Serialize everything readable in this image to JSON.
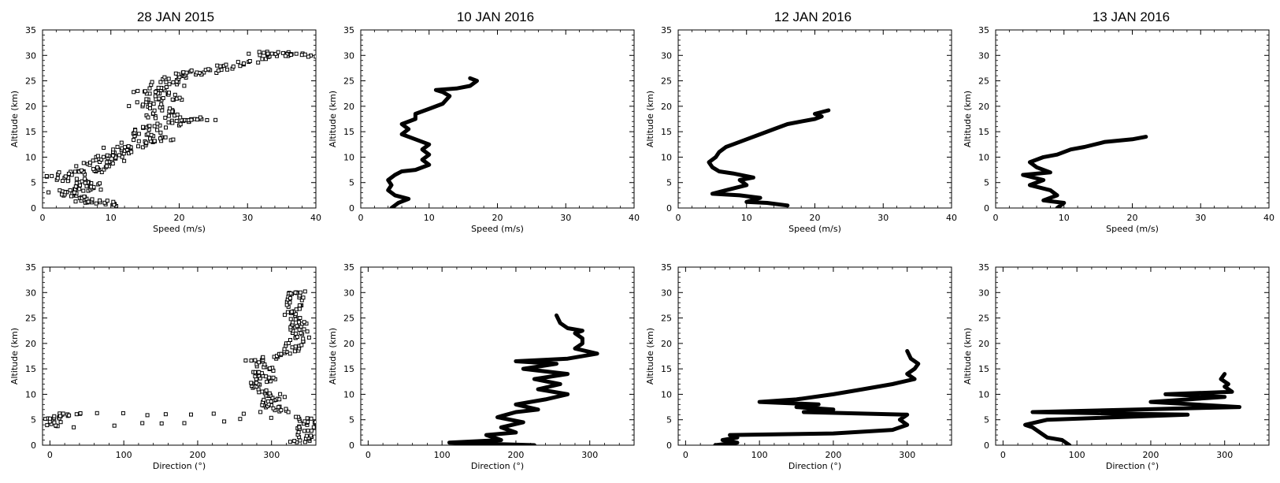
{
  "columns": [
    {
      "title": "28 JAN 2015"
    },
    {
      "title": "10 JAN 2016"
    },
    {
      "title": "12 JAN 2016"
    },
    {
      "title": "13 JAN 2016"
    }
  ],
  "chart_data": [
    {
      "type": "scatter",
      "title": "28 JAN 2015",
      "xlabel": "Speed (m/s)",
      "ylabel": "Altitude (km)",
      "xlim": [
        0,
        40
      ],
      "ylim": [
        0,
        35
      ],
      "xticks": [
        0,
        10,
        20,
        30,
        40
      ],
      "yticks": [
        0,
        5,
        10,
        15,
        20,
        25,
        30,
        35
      ],
      "jitter": 2.5,
      "points": [
        [
          10,
          0.5
        ],
        [
          8.5,
          1
        ],
        [
          6,
          1.5
        ],
        [
          5,
          2.5
        ],
        [
          3,
          3
        ],
        [
          5.5,
          3.5
        ],
        [
          8,
          4
        ],
        [
          6,
          5
        ],
        [
          4,
          5.5
        ],
        [
          2.5,
          6.5
        ],
        [
          6,
          7
        ],
        [
          8,
          7.5
        ],
        [
          7,
          8.5
        ],
        [
          10,
          9
        ],
        [
          9,
          10
        ],
        [
          12,
          10.5
        ],
        [
          11,
          11.5
        ],
        [
          13,
          12
        ],
        [
          14,
          13
        ],
        [
          17,
          13.5
        ],
        [
          15,
          14.5
        ],
        [
          16,
          15.5
        ],
        [
          18,
          16.5
        ],
        [
          21,
          17.2
        ],
        [
          23,
          17.3
        ],
        [
          17,
          18
        ],
        [
          18,
          19
        ],
        [
          15,
          20
        ],
        [
          16,
          21
        ],
        [
          19,
          21.5
        ],
        [
          17,
          22.5
        ],
        [
          15,
          23
        ],
        [
          19,
          24
        ],
        [
          17,
          25
        ],
        [
          20,
          26
        ],
        [
          22,
          26.5
        ],
        [
          24,
          27
        ],
        [
          27,
          28
        ],
        [
          30,
          29
        ],
        [
          33,
          30.5
        ],
        [
          36,
          30.5
        ],
        [
          38,
          30
        ]
      ]
    },
    {
      "type": "line",
      "title": "10 JAN 2016",
      "xlabel": "Speed (m/s)",
      "ylabel": "Altitude (km)",
      "xlim": [
        0,
        40
      ],
      "ylim": [
        0,
        35
      ],
      "xticks": [
        0,
        10,
        20,
        30,
        40
      ],
      "yticks": [
        0,
        5,
        10,
        15,
        20,
        25,
        30,
        35
      ],
      "points": [
        [
          4.5,
          0
        ],
        [
          5.5,
          1
        ],
        [
          7,
          1.8
        ],
        [
          5,
          2.5
        ],
        [
          4,
          3.5
        ],
        [
          4.5,
          4.5
        ],
        [
          4,
          5.5
        ],
        [
          5,
          6.5
        ],
        [
          6,
          7.2
        ],
        [
          8,
          7.5
        ],
        [
          10,
          8.5
        ],
        [
          9,
          9.5
        ],
        [
          10,
          10.5
        ],
        [
          9,
          11.5
        ],
        [
          10,
          12.5
        ],
        [
          8,
          13.5
        ],
        [
          6,
          14.5
        ],
        [
          7,
          15.5
        ],
        [
          6,
          16.5
        ],
        [
          8,
          17.5
        ],
        [
          8,
          18.5
        ],
        [
          10,
          19.5
        ],
        [
          12,
          20.5
        ],
        [
          13,
          22
        ],
        [
          12,
          22.8
        ],
        [
          11,
          23.2
        ],
        [
          14,
          23.5
        ],
        [
          16,
          24
        ],
        [
          17,
          25
        ],
        [
          16,
          25.5
        ]
      ]
    },
    {
      "type": "line",
      "title": "12 JAN 2016",
      "xlabel": "Speed (m/s)",
      "ylabel": "Altitude (km)",
      "xlim": [
        0,
        40
      ],
      "ylim": [
        0,
        35
      ],
      "xticks": [
        0,
        10,
        20,
        30,
        40
      ],
      "yticks": [
        0,
        5,
        10,
        15,
        20,
        25,
        30,
        35
      ],
      "points": [
        [
          16,
          0.5
        ],
        [
          13,
          1
        ],
        [
          10,
          1.2
        ],
        [
          12,
          2
        ],
        [
          9,
          2.5
        ],
        [
          5,
          2.8
        ],
        [
          7,
          3.5
        ],
        [
          10,
          4.5
        ],
        [
          9,
          5.5
        ],
        [
          11,
          6
        ],
        [
          8,
          6.8
        ],
        [
          6,
          7.2
        ],
        [
          5,
          8
        ],
        [
          4.5,
          9
        ],
        [
          5.5,
          10
        ],
        [
          6,
          11
        ],
        [
          7,
          12
        ],
        [
          8,
          12.5
        ],
        [
          10,
          13.5
        ],
        [
          12,
          14.5
        ],
        [
          14,
          15.5
        ],
        [
          16,
          16.5
        ],
        [
          18,
          17
        ],
        [
          20,
          17.5
        ],
        [
          21,
          18
        ],
        [
          20,
          18.5
        ],
        [
          22,
          19.2
        ]
      ]
    },
    {
      "type": "line",
      "title": "13 JAN 2016",
      "xlabel": "Speed (m/s)",
      "ylabel": "Altitude (km)",
      "xlim": [
        0,
        40
      ],
      "ylim": [
        0,
        35
      ],
      "xticks": [
        0,
        10,
        20,
        30,
        40
      ],
      "yticks": [
        0,
        5,
        10,
        15,
        20,
        25,
        30,
        35
      ],
      "points": [
        [
          9,
          0
        ],
        [
          10,
          1
        ],
        [
          7,
          1.5
        ],
        [
          9,
          2.5
        ],
        [
          8,
          3.5
        ],
        [
          5,
          4.5
        ],
        [
          7,
          5.5
        ],
        [
          4,
          6.5
        ],
        [
          8,
          7
        ],
        [
          6,
          8
        ],
        [
          5,
          9
        ],
        [
          7,
          10
        ],
        [
          9,
          10.5
        ],
        [
          11,
          11.5
        ],
        [
          13,
          12
        ],
        [
          16,
          13
        ],
        [
          20,
          13.5
        ],
        [
          22,
          14
        ]
      ]
    },
    {
      "type": "scatter",
      "title": "28 JAN 2015",
      "xlabel": "Direction (°)",
      "ylabel": "Altitude (km)",
      "xlim": [
        -10,
        360
      ],
      "ylim": [
        0,
        35
      ],
      "xticks": [
        0,
        100,
        200,
        300
      ],
      "yticks": [
        0,
        5,
        10,
        15,
        20,
        25,
        30,
        35
      ],
      "jitter": 12,
      "points": [
        [
          335,
          0.5
        ],
        [
          350,
          1.5
        ],
        [
          345,
          3
        ],
        [
          350,
          4.5
        ],
        [
          340,
          5.5
        ],
        [
          2,
          3.5
        ],
        [
          5,
          5
        ],
        [
          20,
          6
        ],
        [
          30,
          6
        ],
        [
          315,
          6.5
        ],
        [
          300,
          7.5
        ],
        [
          295,
          8.5
        ],
        [
          310,
          9.5
        ],
        [
          285,
          10.5
        ],
        [
          275,
          12
        ],
        [
          295,
          13
        ],
        [
          285,
          14
        ],
        [
          300,
          15
        ],
        [
          270,
          16.5
        ],
        [
          305,
          17.5
        ],
        [
          325,
          18.5
        ],
        [
          330,
          20
        ],
        [
          345,
          21.5
        ],
        [
          330,
          23
        ],
        [
          340,
          24
        ],
        [
          325,
          25.5
        ],
        [
          330,
          27
        ],
        [
          333,
          28.5
        ],
        [
          335,
          30
        ]
      ]
    },
    {
      "type": "line",
      "title": "10 JAN 2016",
      "xlabel": "Direction (°)",
      "ylabel": "Altitude (km)",
      "xlim": [
        -10,
        360
      ],
      "ylim": [
        0,
        35
      ],
      "xticks": [
        0,
        100,
        200,
        300
      ],
      "yticks": [
        0,
        5,
        10,
        15,
        20,
        25,
        30,
        35
      ],
      "points": [
        [
          225,
          0
        ],
        [
          110,
          0.5
        ],
        [
          180,
          1
        ],
        [
          160,
          2
        ],
        [
          200,
          2.5
        ],
        [
          180,
          3.5
        ],
        [
          210,
          4.5
        ],
        [
          175,
          5.5
        ],
        [
          200,
          6.5
        ],
        [
          230,
          7
        ],
        [
          200,
          8
        ],
        [
          240,
          9
        ],
        [
          270,
          10
        ],
        [
          230,
          11
        ],
        [
          260,
          12
        ],
        [
          225,
          13
        ],
        [
          270,
          14
        ],
        [
          210,
          15
        ],
        [
          255,
          16
        ],
        [
          200,
          16.5
        ],
        [
          270,
          17
        ],
        [
          310,
          18
        ],
        [
          280,
          19
        ],
        [
          290,
          20
        ],
        [
          290,
          21
        ],
        [
          280,
          22
        ],
        [
          290,
          22.5
        ],
        [
          270,
          23
        ],
        [
          260,
          24
        ],
        [
          255,
          25.5
        ]
      ]
    },
    {
      "type": "line",
      "title": "12 JAN 2016",
      "xlabel": "Direction (°)",
      "ylabel": "Altitude (km)",
      "xlim": [
        -10,
        360
      ],
      "ylim": [
        0,
        35
      ],
      "xticks": [
        0,
        100,
        200,
        300
      ],
      "yticks": [
        0,
        5,
        10,
        15,
        20,
        25,
        30,
        35
      ],
      "points": [
        [
          40,
          0
        ],
        [
          70,
          0.5
        ],
        [
          50,
          1
        ],
        [
          70,
          1.5
        ],
        [
          60,
          2
        ],
        [
          200,
          2.3
        ],
        [
          280,
          3
        ],
        [
          300,
          4
        ],
        [
          290,
          5
        ],
        [
          300,
          6
        ],
        [
          160,
          6.5
        ],
        [
          200,
          7
        ],
        [
          150,
          7.5
        ],
        [
          180,
          8
        ],
        [
          100,
          8.5
        ],
        [
          150,
          9
        ],
        [
          200,
          10
        ],
        [
          240,
          11
        ],
        [
          280,
          12
        ],
        [
          310,
          13
        ],
        [
          300,
          14
        ],
        [
          310,
          15
        ],
        [
          315,
          16
        ],
        [
          305,
          17
        ],
        [
          300,
          18.5
        ]
      ]
    },
    {
      "type": "line",
      "title": "13 JAN 2016",
      "xlabel": "Direction (°)",
      "ylabel": "Altitude (km)",
      "xlim": [
        -10,
        360
      ],
      "ylim": [
        0,
        35
      ],
      "xticks": [
        0,
        100,
        200,
        300
      ],
      "yticks": [
        0,
        5,
        10,
        15,
        20,
        25,
        30,
        35
      ],
      "points": [
        [
          90,
          0
        ],
        [
          80,
          1
        ],
        [
          60,
          1.5
        ],
        [
          50,
          2.5
        ],
        [
          40,
          3.5
        ],
        [
          30,
          4
        ],
        [
          60,
          5
        ],
        [
          250,
          6
        ],
        [
          40,
          6.5
        ],
        [
          320,
          7.5
        ],
        [
          200,
          8.5
        ],
        [
          300,
          9.5
        ],
        [
          220,
          10
        ],
        [
          310,
          10.5
        ],
        [
          300,
          11.5
        ],
        [
          305,
          12
        ],
        [
          295,
          13
        ],
        [
          300,
          14
        ]
      ]
    }
  ]
}
